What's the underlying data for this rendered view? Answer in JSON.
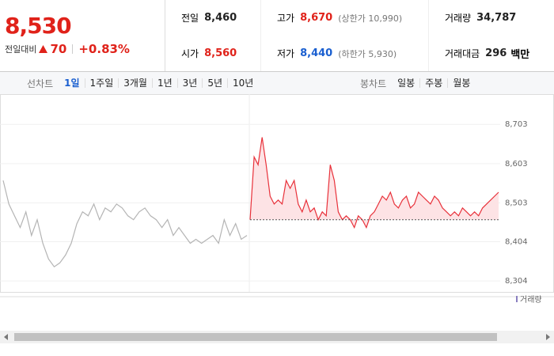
{
  "quote": {
    "price": "8,530",
    "change_label": "전일대비",
    "change": "70",
    "change_rate": "+0.83%"
  },
  "stats": [
    {
      "label": "전일",
      "value": "8,460",
      "color": "#222222"
    },
    {
      "label": "고가",
      "value": "8,670",
      "note": "(상한가 10,990)",
      "color": "#e0221a"
    },
    {
      "label": "거래량",
      "value": "34,787",
      "color": "#222222"
    },
    {
      "label": "시가",
      "value": "8,560",
      "color": "#e0221a"
    },
    {
      "label": "저가",
      "value": "8,440",
      "note": "(하한가 5,930)",
      "color": "#1a5fd0"
    },
    {
      "label": "거래대금",
      "value": "296",
      "unit": "백만",
      "color": "#222222"
    }
  ],
  "tabs": {
    "line_label": "선차트",
    "line_items": [
      "1일",
      "1주일",
      "3개월",
      "1년",
      "3년",
      "5년",
      "10년"
    ],
    "selected": 0,
    "candle_label": "봉차트",
    "candle_items": [
      "일봉",
      "주봉",
      "월봉"
    ]
  },
  "chart_data": {
    "type": "line",
    "ylim": [
      8284,
      8768
    ],
    "yticks": [
      {
        "value": 8703,
        "label": "8,703"
      },
      {
        "value": 8603,
        "label": "8,603"
      },
      {
        "value": 8503,
        "label": "8,503"
      },
      {
        "value": 8404,
        "label": "8,404"
      },
      {
        "value": 8304,
        "label": "8,304"
      }
    ],
    "baseline": 8460,
    "grid": true,
    "volume_label": "거래량",
    "series": [
      {
        "color": "#b4b4b4",
        "values": [
          8560,
          8500,
          8470,
          8440,
          8480,
          8420,
          8460,
          8400,
          8360,
          8340,
          8350,
          8370,
          8400,
          8450,
          8480,
          8470,
          8500,
          8460,
          8490,
          8480,
          8500,
          8490,
          8470,
          8460,
          8480,
          8490,
          8470,
          8460,
          8440,
          8460,
          8420,
          8440,
          8420,
          8400,
          8410,
          8400,
          8410,
          8420,
          8400,
          8460,
          8420,
          8450,
          8410,
          8420
        ]
      },
      {
        "color": "#e8313a",
        "values": [
          8460,
          8620,
          8600,
          8670,
          8600,
          8520,
          8500,
          8510,
          8500,
          8560,
          8540,
          8560,
          8500,
          8480,
          8510,
          8480,
          8490,
          8460,
          8480,
          8470,
          8600,
          8560,
          8480,
          8460,
          8470,
          8460,
          8440,
          8470,
          8460,
          8440,
          8470,
          8480,
          8500,
          8520,
          8510,
          8530,
          8500,
          8490,
          8510,
          8520,
          8490,
          8500,
          8530,
          8520,
          8510,
          8500,
          8520,
          8510,
          8490,
          8480,
          8470,
          8480,
          8470,
          8490,
          8480,
          8470,
          8480,
          8470,
          8490,
          8500,
          8510,
          8520,
          8530
        ]
      }
    ]
  }
}
